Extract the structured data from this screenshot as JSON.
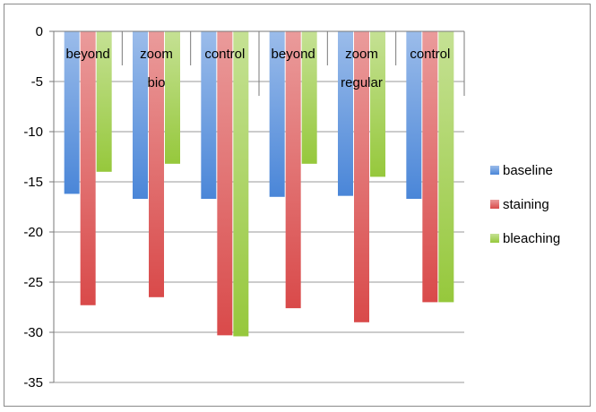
{
  "chart_data": {
    "type": "bar",
    "title": "",
    "xlabel": "",
    "ylabel": "",
    "ylim": [
      -35,
      0
    ],
    "yticks": [
      0,
      -5,
      -10,
      -15,
      -20,
      -25,
      -30,
      -35
    ],
    "grid": true,
    "legend_position": "right",
    "categories": [
      "beyond",
      "zoom bio",
      "control",
      "beyond",
      "zoom regular",
      "control"
    ],
    "category_label_lines": [
      [
        "beyond"
      ],
      [
        "zoom",
        "bio"
      ],
      [
        "control"
      ],
      [
        "beyond"
      ],
      [
        "zoom",
        "regular"
      ],
      [
        "control"
      ]
    ],
    "series": [
      {
        "name": "baseline",
        "color": "#4a86d8",
        "values": [
          -16.2,
          -16.7,
          -16.7,
          -16.5,
          -16.4,
          -16.7
        ]
      },
      {
        "name": "staining",
        "color": "#d94a4a",
        "values": [
          -27.3,
          -26.5,
          -30.3,
          -27.6,
          -29.0,
          -27.0
        ]
      },
      {
        "name": "bleaching",
        "color": "#96c83c",
        "values": [
          -14.0,
          -13.2,
          -30.4,
          -13.2,
          -14.5,
          -27.0
        ]
      }
    ]
  }
}
